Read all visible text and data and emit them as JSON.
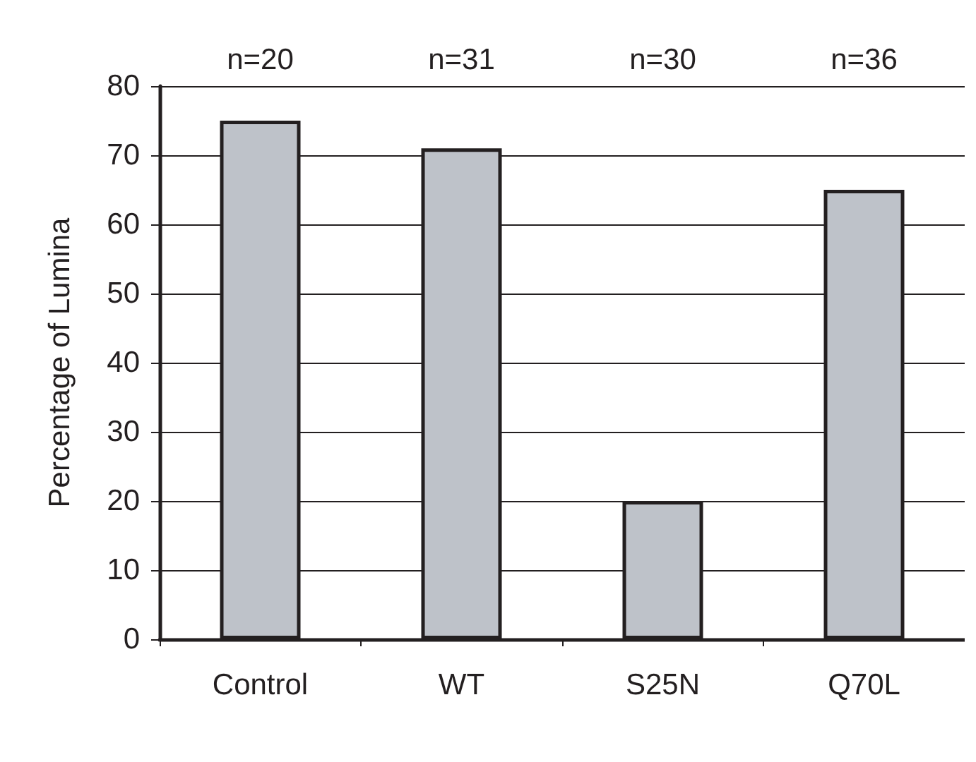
{
  "chart_data": {
    "type": "bar",
    "ylabel": "Percentage of Lumina",
    "categories": [
      "Control",
      "WT",
      "S25N",
      "Q70L"
    ],
    "values": [
      75,
      71,
      20,
      65
    ],
    "color": "#bec2c9",
    "ylim": [
      0,
      80
    ],
    "yticks": [
      0,
      10,
      20,
      30,
      40,
      50,
      60,
      70,
      80
    ],
    "grid": "y",
    "annotations": [
      "n=20",
      "n=31",
      "n=30",
      "n=36"
    ]
  }
}
